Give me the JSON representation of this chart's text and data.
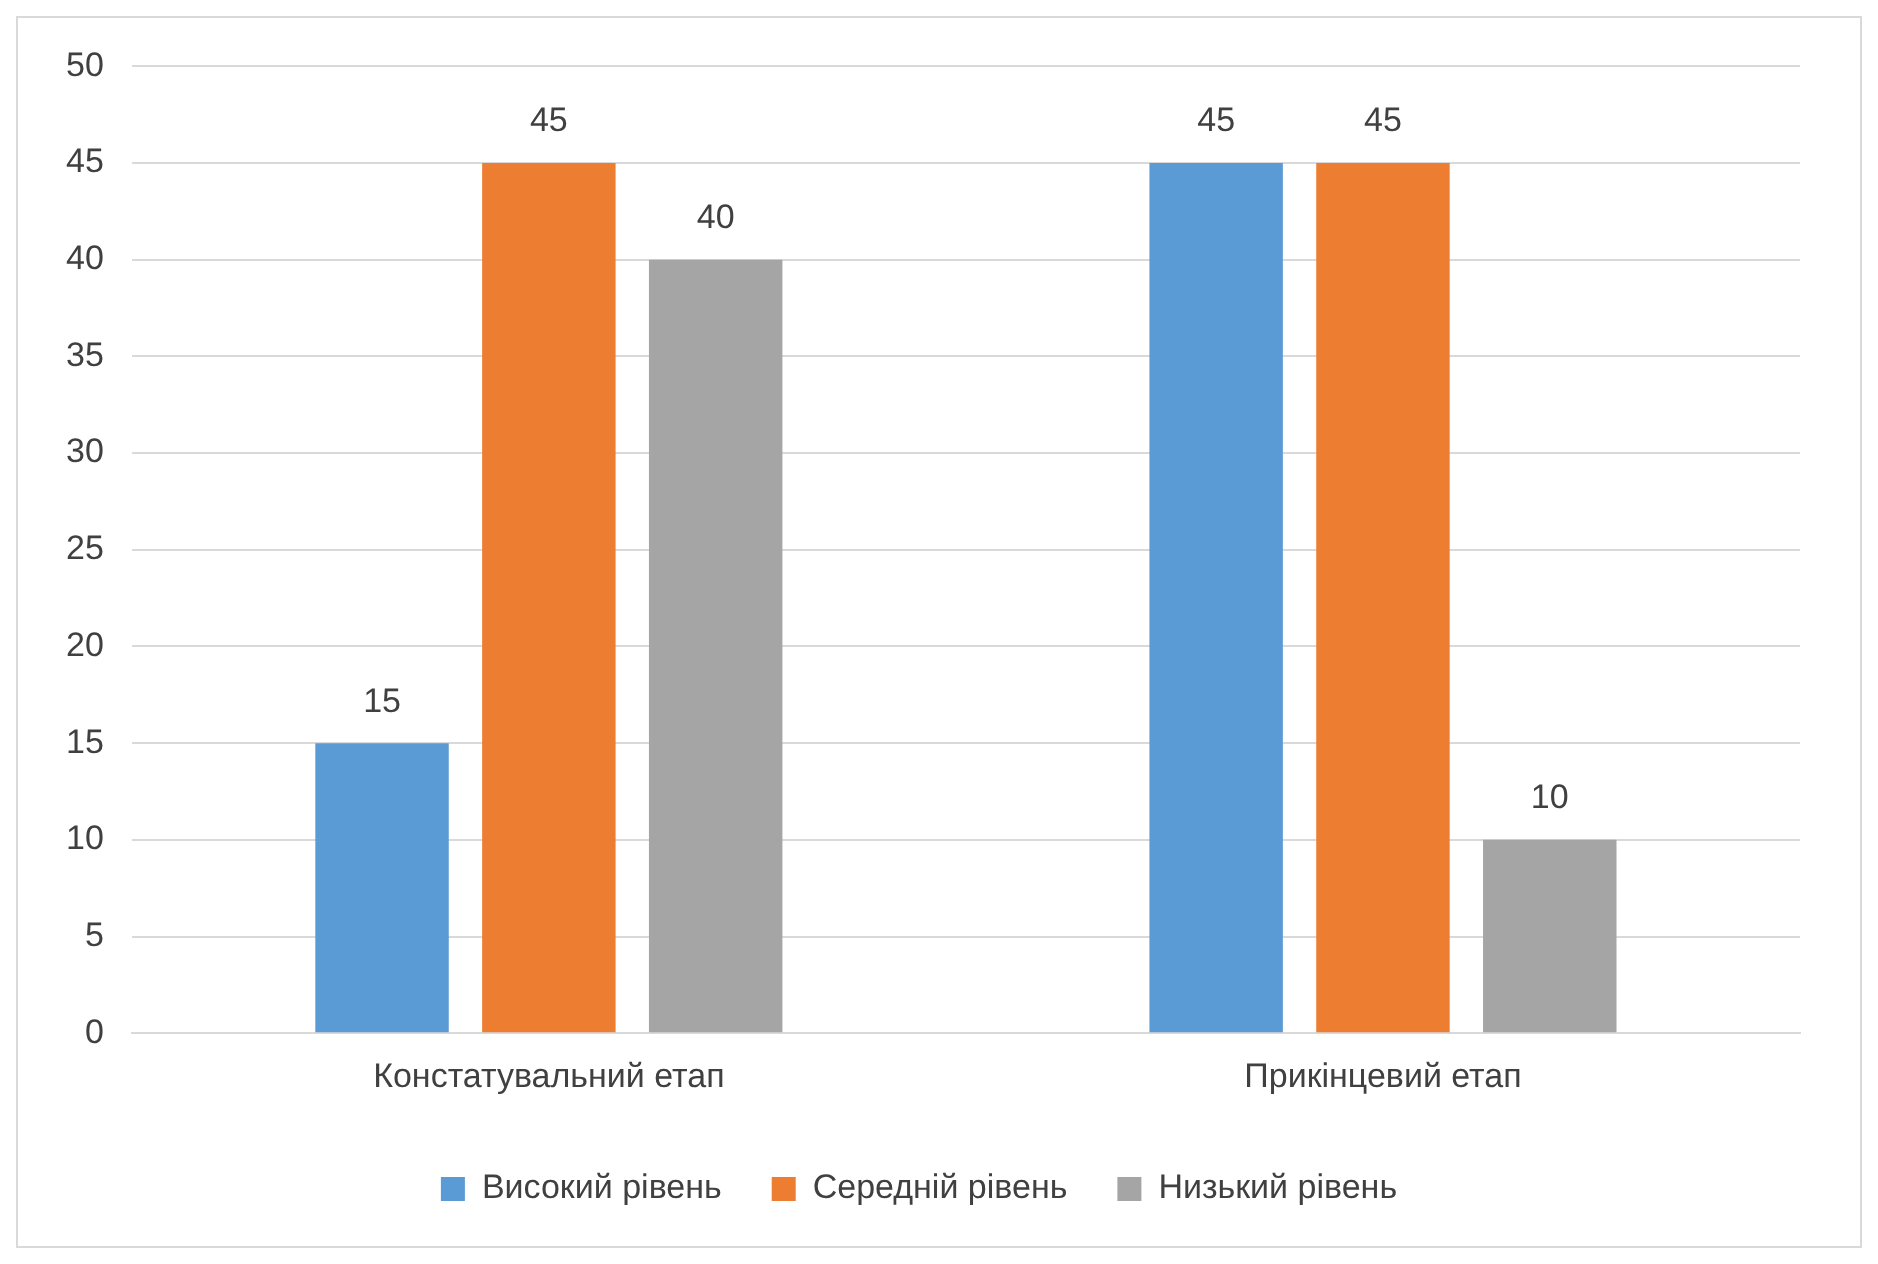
{
  "chart_data": {
    "type": "bar",
    "categories": [
      "Констатувальний етап",
      "Прикінцевий етап"
    ],
    "series": [
      {
        "name": "Високий рівень",
        "color": "#5b9bd5",
        "values": [
          15,
          45
        ]
      },
      {
        "name": "Середній рівень",
        "color": "#ed7d31",
        "values": [
          45,
          45
        ]
      },
      {
        "name": "Низький рівень",
        "color": "#a5a5a5",
        "values": [
          40,
          10
        ]
      }
    ],
    "ylim": [
      0,
      50
    ],
    "yticks": [
      0,
      5,
      10,
      15,
      20,
      25,
      30,
      35,
      40,
      45,
      50
    ],
    "grid": "y",
    "legend": "bottom",
    "data_labels": true
  }
}
